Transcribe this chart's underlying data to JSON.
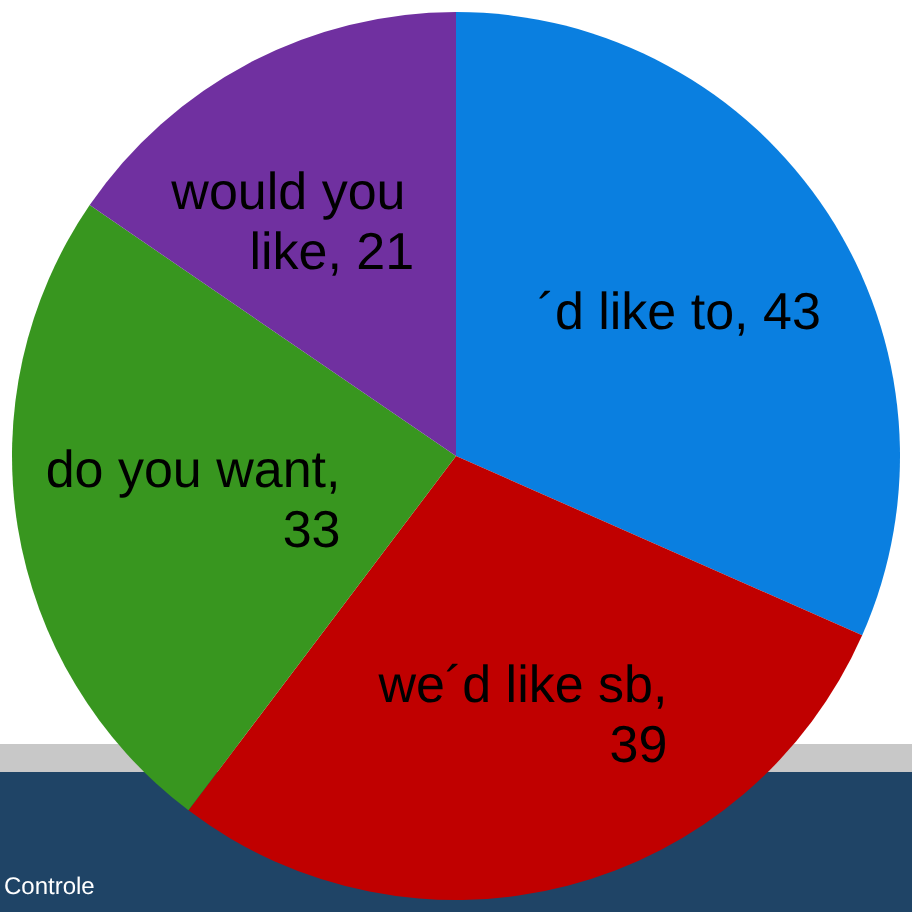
{
  "chart_data": {
    "type": "pie",
    "categories": [
      "´d like to",
      "we´d like sb",
      "do you want",
      "would you like"
    ],
    "values": [
      43,
      39,
      33,
      21
    ],
    "value_labels": [
      ", 43",
      ", 39",
      ", 33",
      ", 21"
    ],
    "colors": [
      "#0a7fe0",
      "#c00000",
      "#38961f",
      "#7030a0"
    ],
    "annotations": [
      "Controle"
    ]
  }
}
